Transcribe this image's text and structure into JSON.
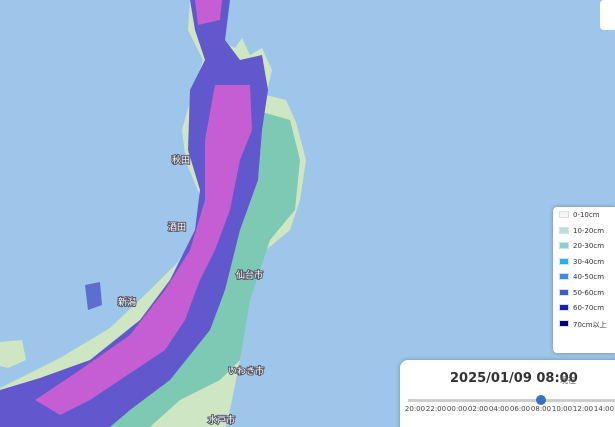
{
  "map": {
    "places": [
      "秋田",
      "酒田",
      "新潟",
      "仙台市",
      "いわき市",
      "水戸市"
    ]
  },
  "legend": [
    {
      "label": "0-10cm",
      "color": "#f4f6f6"
    },
    {
      "label": "10-20cm",
      "color": "#b2e2dc"
    },
    {
      "label": "20-30cm",
      "color": "#86d0d6"
    },
    {
      "label": "30-40cm",
      "color": "#22b6ea"
    },
    {
      "label": "40-50cm",
      "color": "#3a8ee0"
    },
    {
      "label": "50-60cm",
      "color": "#3c5cc6"
    },
    {
      "label": "60-70cm",
      "color": "#1a1ac4"
    },
    {
      "label": "70cm以上",
      "color": "#00007e"
    }
  ],
  "timeline": {
    "datetime": "2025/01/09 08:00",
    "status": "現在",
    "times": [
      "20:00",
      "22:00",
      "00:00",
      "02:00",
      "04:00",
      "06:00",
      "08:00",
      "10:00",
      "12:00",
      "14:00"
    ],
    "current": 6
  }
}
